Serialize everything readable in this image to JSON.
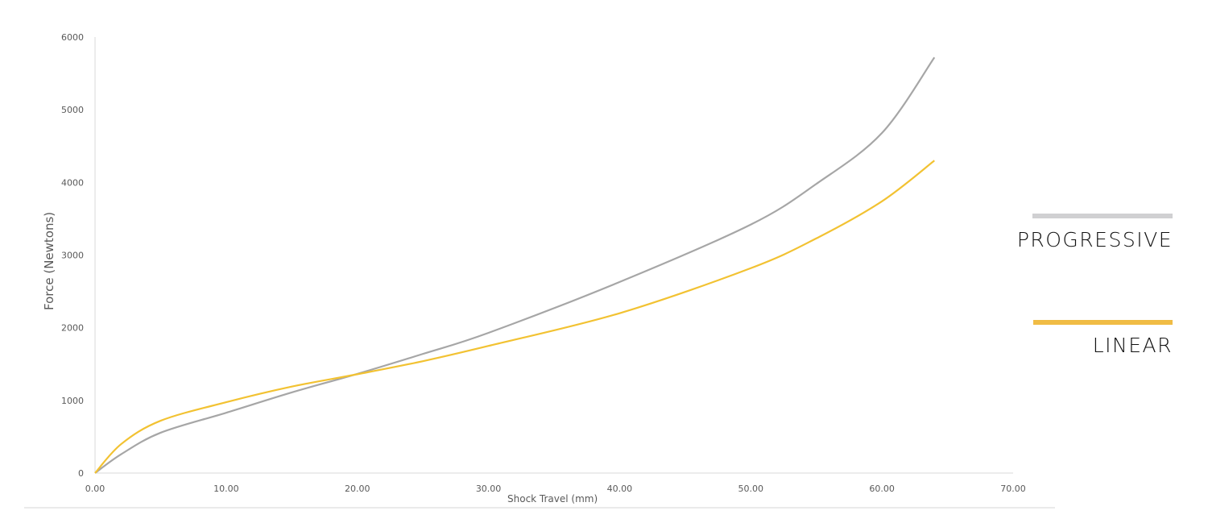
{
  "chart_data": {
    "type": "line",
    "title": "",
    "xlabel": "Shock Travel (mm)",
    "ylabel": "Force (Newtons)",
    "xlim": [
      0,
      70
    ],
    "ylim": [
      0,
      6000
    ],
    "x_ticks": [
      "0.00",
      "10.00",
      "20.00",
      "30.00",
      "40.00",
      "50.00",
      "60.00",
      "70.00"
    ],
    "y_ticks": [
      "0",
      "1000",
      "2000",
      "3000",
      "4000",
      "5000",
      "6000"
    ],
    "grid": false,
    "legend_placement": "right",
    "series": [
      {
        "name": "PROGRESSIVE",
        "color": "#A6A6A6",
        "legend_color": "#D0D0D2",
        "x": [
          0,
          2,
          5,
          10,
          15,
          20,
          25,
          30,
          40,
          50,
          55,
          60,
          64
        ],
        "y": [
          0,
          260,
          555,
          830,
          1110,
          1365,
          1640,
          1930,
          2630,
          3420,
          3980,
          4680,
          5720
        ]
      },
      {
        "name": "LINEAR",
        "color": "#F2C232",
        "legend_color": "#F0BC45",
        "x": [
          0,
          2,
          5,
          10,
          15,
          20,
          25,
          30,
          40,
          50,
          55,
          60,
          64
        ],
        "y": [
          0,
          400,
          720,
          975,
          1190,
          1360,
          1540,
          1750,
          2200,
          2820,
          3230,
          3740,
          4300
        ]
      }
    ]
  }
}
